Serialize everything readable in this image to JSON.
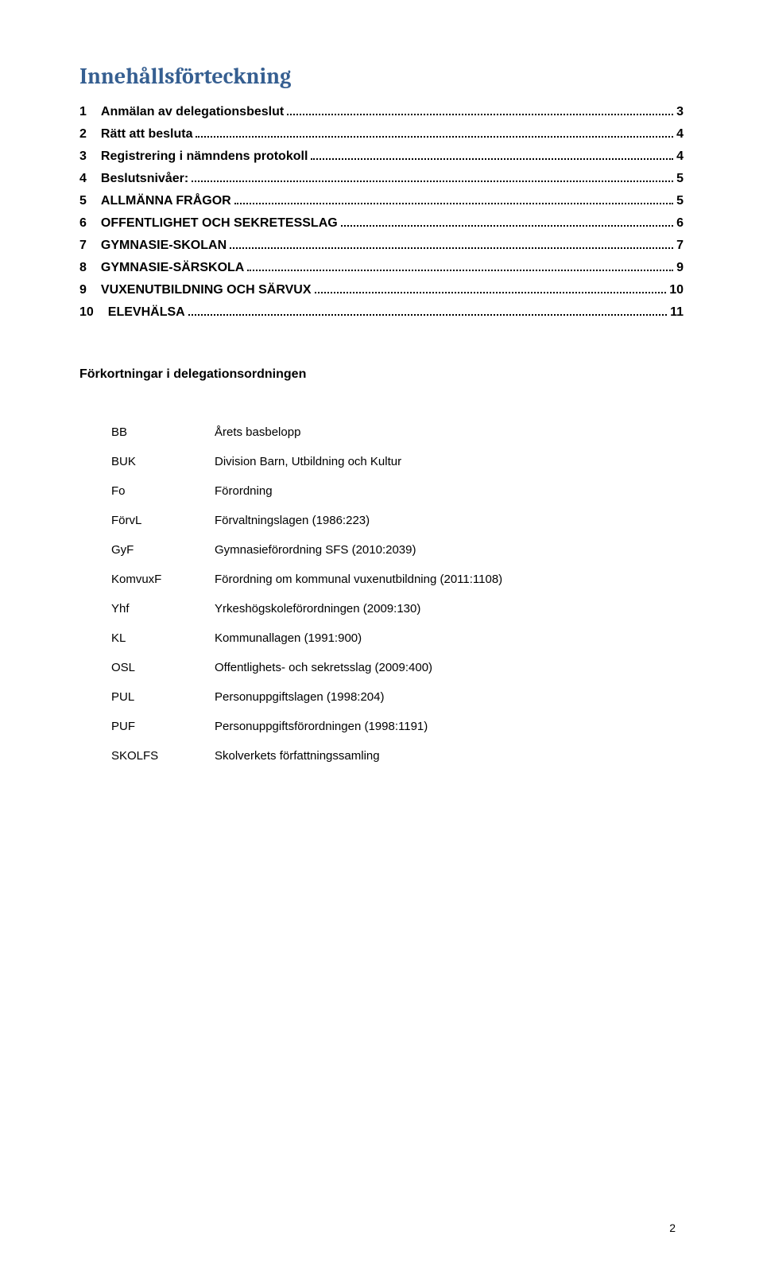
{
  "title": "Innehållsförteckning",
  "title_color": "#365f91",
  "toc": [
    {
      "num": "1",
      "label": "Anmälan av delegationsbeslut",
      "page": "3"
    },
    {
      "num": "2",
      "label": "Rätt att besluta",
      "page": "4"
    },
    {
      "num": "3",
      "label": "Registrering i nämndens protokoll",
      "page": "4"
    },
    {
      "num": "4",
      "label": "Beslutsnivåer:",
      "page": "5"
    },
    {
      "num": "5",
      "label": "ALLMÄNNA FRÅGOR",
      "page": "5"
    },
    {
      "num": "6",
      "label": "OFFENTLIGHET OCH SEKRETESSLAG",
      "page": "6"
    },
    {
      "num": "7",
      "label": "GYMNASIE-SKOLAN",
      "page": "7"
    },
    {
      "num": "8",
      "label": "GYMNASIE-SÄRSKOLA",
      "page": "9"
    },
    {
      "num": "9",
      "label": "VUXENUTBILDNING OCH SÄRVUX",
      "page": "10"
    },
    {
      "num": "10",
      "label": "ELEVHÄLSA",
      "page": "11"
    }
  ],
  "abbr_heading": "Förkortningar i delegationsordningen",
  "abbr": [
    {
      "k": "BB",
      "v": "Årets basbelopp"
    },
    {
      "k": "BUK",
      "v": "Division Barn, Utbildning och Kultur"
    },
    {
      "k": "Fo",
      "v": "Förordning"
    },
    {
      "k": "FörvL",
      "v": "Förvaltningslagen (1986:223)"
    },
    {
      "k": "GyF",
      "v": "Gymnasieförordning SFS (2010:2039)"
    },
    {
      "k": "KomvuxF",
      "v": "Förordning om kommunal vuxenutbildning (2011:1108)"
    },
    {
      "k": "Yhf",
      "v": "Yrkeshögskoleförordningen (2009:130)"
    },
    {
      "k": "KL",
      "v": "Kommunallagen (1991:900)"
    },
    {
      "k": "OSL",
      "v": "Offentlighets- och sekretsslag (2009:400)"
    },
    {
      "k": "PUL",
      "v": "Personuppgiftslagen (1998:204)"
    },
    {
      "k": "PUF",
      "v": "Personuppgiftsförordningen (1998:1191)"
    },
    {
      "k": "SKOLFS",
      "v": "Skolverkets författningssamling"
    }
  ],
  "page_number": "2"
}
